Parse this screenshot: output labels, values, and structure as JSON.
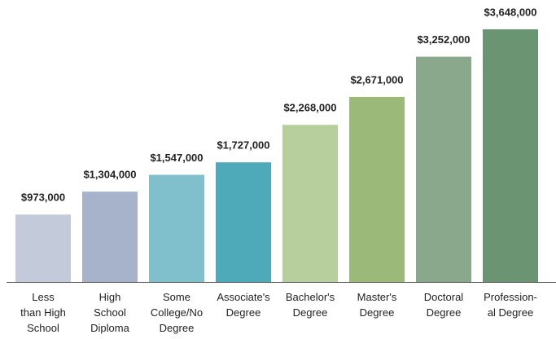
{
  "chart_data": {
    "type": "bar",
    "categories": [
      "Less\nthan High\nSchool",
      "High\nSchool\nDiploma",
      "Some\nCollege/No\nDegree",
      "Associate's\nDegree",
      "Bachelor's\nDegree",
      "Master's\nDegree",
      "Doctoral\nDegree",
      "Profession-\nal Degree"
    ],
    "values": [
      973000,
      1304000,
      1547000,
      1727000,
      2268000,
      2671000,
      3252000,
      3648000
    ],
    "value_labels": [
      "$973,000",
      "$1,304,000",
      "$1,547,000",
      "$1,727,000",
      "$2,268,000",
      "$2,671,000",
      "$3,252,000",
      "$3,648,000"
    ],
    "colors": [
      "#c3cad9",
      "#a6b3cb",
      "#80bfcc",
      "#4ea9b9",
      "#b6cf9d",
      "#9bba79",
      "#8aa88c",
      "#6a9472"
    ],
    "ylim": [
      0,
      4000000
    ]
  }
}
